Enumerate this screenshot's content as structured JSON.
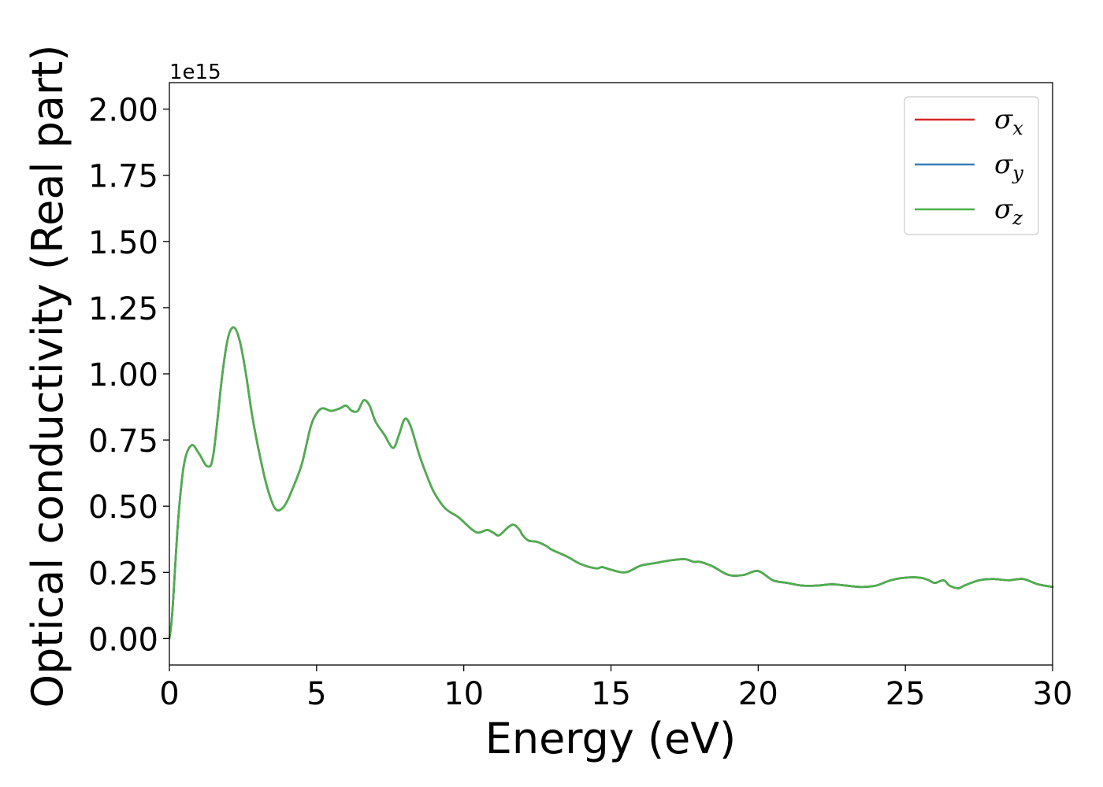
{
  "chart_data": {
    "type": "line",
    "title": "",
    "xlabel": "Energy (eV)",
    "ylabel": "Optical conductivity (Real part)",
    "y_offset_label": "1e15",
    "xlim": [
      0,
      30
    ],
    "ylim": [
      -0.1,
      2.1
    ],
    "xticks": [
      0,
      5,
      10,
      15,
      20,
      25,
      30
    ],
    "xtick_labels": [
      "0",
      "5",
      "10",
      "15",
      "20",
      "25",
      "30"
    ],
    "yticks": [
      0.0,
      0.25,
      0.5,
      0.75,
      1.0,
      1.25,
      1.5,
      1.75,
      2.0
    ],
    "ytick_labels": [
      "0.00",
      "0.25",
      "0.50",
      "0.75",
      "1.00",
      "1.25",
      "1.50",
      "1.75",
      "2.00"
    ],
    "grid": false,
    "legend_position": "top-right",
    "x": [
      0.0,
      0.1,
      0.3,
      0.5,
      0.75,
      1.0,
      1.3,
      1.5,
      1.8,
      2.0,
      2.2,
      2.4,
      2.6,
      2.8,
      3.0,
      3.3,
      3.6,
      3.9,
      4.2,
      4.5,
      4.8,
      5.0,
      5.2,
      5.5,
      5.8,
      6.0,
      6.2,
      6.4,
      6.6,
      6.8,
      7.0,
      7.3,
      7.6,
      7.8,
      8.0,
      8.2,
      8.5,
      8.8,
      9.0,
      9.3,
      9.5,
      9.8,
      10.0,
      10.3,
      10.5,
      10.8,
      11.0,
      11.2,
      11.5,
      11.7,
      11.9,
      12.0,
      12.2,
      12.5,
      12.8,
      13.0,
      13.5,
      14.0,
      14.5,
      14.7,
      15.0,
      15.5,
      16.0,
      16.5,
      17.0,
      17.5,
      17.8,
      18.0,
      18.3,
      18.5,
      19.0,
      19.5,
      20.0,
      20.5,
      21.0,
      21.5,
      22.0,
      22.5,
      23.0,
      23.5,
      24.0,
      24.5,
      25.0,
      25.5,
      25.8,
      26.0,
      26.3,
      26.5,
      26.8,
      27.0,
      27.5,
      28.0,
      28.5,
      29.0,
      29.5,
      30.0
    ],
    "series": [
      {
        "name": "σx",
        "label_base": "σ",
        "label_sub": "x",
        "color": "#d62728",
        "values": [
          0.0,
          0.1,
          0.45,
          0.66,
          0.73,
          0.7,
          0.65,
          0.7,
          1.0,
          1.14,
          1.175,
          1.12,
          1.0,
          0.85,
          0.73,
          0.58,
          0.49,
          0.5,
          0.57,
          0.66,
          0.8,
          0.85,
          0.87,
          0.86,
          0.87,
          0.88,
          0.86,
          0.86,
          0.9,
          0.88,
          0.82,
          0.77,
          0.72,
          0.77,
          0.83,
          0.8,
          0.69,
          0.6,
          0.55,
          0.5,
          0.48,
          0.46,
          0.44,
          0.41,
          0.4,
          0.41,
          0.4,
          0.39,
          0.42,
          0.43,
          0.41,
          0.39,
          0.37,
          0.365,
          0.35,
          0.335,
          0.31,
          0.28,
          0.265,
          0.27,
          0.26,
          0.25,
          0.275,
          0.285,
          0.295,
          0.3,
          0.29,
          0.29,
          0.28,
          0.27,
          0.24,
          0.24,
          0.255,
          0.22,
          0.21,
          0.2,
          0.2,
          0.205,
          0.2,
          0.195,
          0.2,
          0.22,
          0.23,
          0.23,
          0.22,
          0.21,
          0.22,
          0.2,
          0.19,
          0.2,
          0.22,
          0.225,
          0.22,
          0.225,
          0.205,
          0.195
        ]
      },
      {
        "name": "σy",
        "label_base": "σ",
        "label_sub": "y",
        "color": "#377eb8",
        "values": [
          0.0,
          0.1,
          0.45,
          0.66,
          0.73,
          0.7,
          0.65,
          0.7,
          1.0,
          1.14,
          1.175,
          1.12,
          1.0,
          0.85,
          0.73,
          0.58,
          0.49,
          0.5,
          0.57,
          0.66,
          0.8,
          0.85,
          0.87,
          0.86,
          0.87,
          0.88,
          0.86,
          0.86,
          0.9,
          0.88,
          0.82,
          0.77,
          0.72,
          0.77,
          0.83,
          0.8,
          0.69,
          0.6,
          0.55,
          0.5,
          0.48,
          0.46,
          0.44,
          0.41,
          0.4,
          0.41,
          0.4,
          0.39,
          0.42,
          0.43,
          0.41,
          0.39,
          0.37,
          0.365,
          0.35,
          0.335,
          0.31,
          0.28,
          0.265,
          0.27,
          0.26,
          0.25,
          0.275,
          0.285,
          0.295,
          0.3,
          0.29,
          0.29,
          0.28,
          0.27,
          0.24,
          0.24,
          0.255,
          0.22,
          0.21,
          0.2,
          0.2,
          0.205,
          0.2,
          0.195,
          0.2,
          0.22,
          0.23,
          0.23,
          0.22,
          0.21,
          0.22,
          0.2,
          0.19,
          0.2,
          0.22,
          0.225,
          0.22,
          0.225,
          0.205,
          0.195
        ]
      },
      {
        "name": "σz",
        "label_base": "σ",
        "label_sub": "z",
        "color": "#4daf4a",
        "values": [
          0.0,
          0.1,
          0.45,
          0.66,
          0.73,
          0.7,
          0.65,
          0.7,
          1.0,
          1.14,
          1.175,
          1.12,
          1.0,
          0.85,
          0.73,
          0.58,
          0.49,
          0.5,
          0.57,
          0.66,
          0.8,
          0.85,
          0.87,
          0.86,
          0.87,
          0.88,
          0.86,
          0.86,
          0.9,
          0.88,
          0.82,
          0.77,
          0.72,
          0.77,
          0.83,
          0.8,
          0.69,
          0.6,
          0.55,
          0.5,
          0.48,
          0.46,
          0.44,
          0.41,
          0.4,
          0.41,
          0.4,
          0.39,
          0.42,
          0.43,
          0.41,
          0.39,
          0.37,
          0.365,
          0.35,
          0.335,
          0.31,
          0.28,
          0.265,
          0.27,
          0.26,
          0.25,
          0.275,
          0.285,
          0.295,
          0.3,
          0.29,
          0.29,
          0.28,
          0.27,
          0.24,
          0.24,
          0.255,
          0.22,
          0.21,
          0.2,
          0.2,
          0.205,
          0.2,
          0.195,
          0.2,
          0.22,
          0.23,
          0.23,
          0.22,
          0.21,
          0.22,
          0.2,
          0.19,
          0.2,
          0.22,
          0.225,
          0.22,
          0.225,
          0.205,
          0.195
        ]
      }
    ]
  }
}
